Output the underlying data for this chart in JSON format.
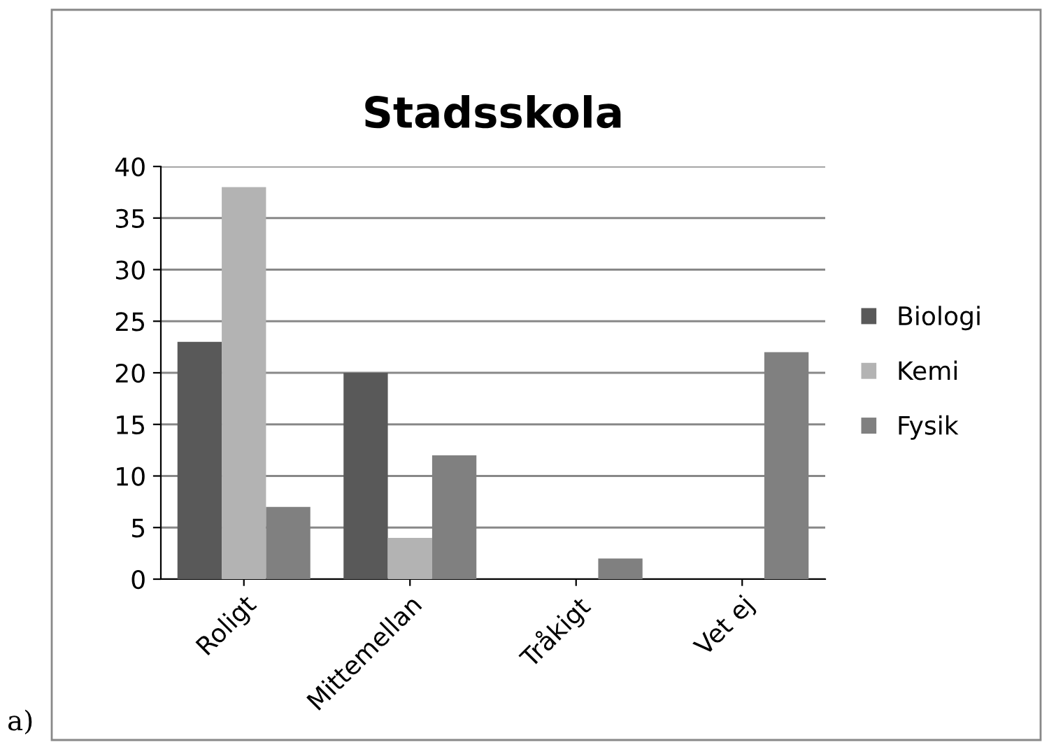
{
  "chart_data": {
    "type": "bar",
    "title": "Stadsskola",
    "categories": [
      "Roligt",
      "Mittemellan",
      "Tråkigt",
      "Vet ej"
    ],
    "series": [
      {
        "name": "Biologi",
        "color": "#595959",
        "values": [
          23,
          20,
          0,
          0
        ]
      },
      {
        "name": "Kemi",
        "color": "#b3b3b3",
        "values": [
          38,
          4,
          0,
          0
        ]
      },
      {
        "name": "Fysik",
        "color": "#808080",
        "values": [
          7,
          12,
          2,
          22
        ]
      }
    ],
    "ylim": [
      0,
      40
    ],
    "yticks": [
      0,
      5,
      10,
      15,
      20,
      25,
      30,
      35,
      40
    ],
    "grid": "y",
    "legend": "right",
    "annotations": [
      "a)"
    ]
  }
}
